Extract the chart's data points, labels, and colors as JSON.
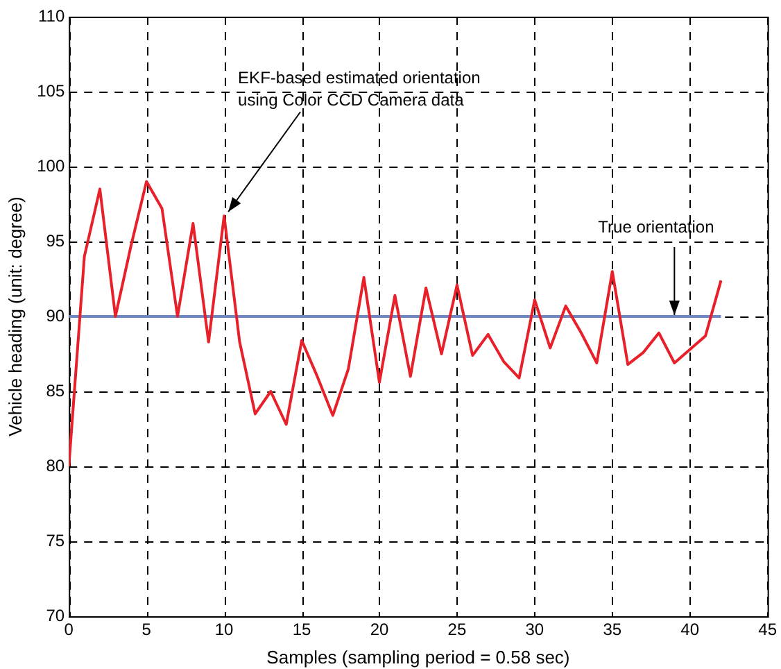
{
  "chart_data": {
    "type": "line",
    "xlabel": "Samples (sampling period = 0.58 sec)",
    "ylabel": "Vehicle heading (unit: degree)",
    "x": [
      0,
      1,
      2,
      3,
      4,
      5,
      6,
      7,
      8,
      9,
      10,
      11,
      12,
      13,
      14,
      15,
      16,
      17,
      18,
      19,
      20,
      21,
      22,
      23,
      24,
      25,
      26,
      27,
      28,
      29,
      30,
      31,
      32,
      33,
      34,
      35,
      36,
      37,
      38,
      39,
      40,
      41,
      42
    ],
    "series": [
      {
        "color": "#e8202a",
        "values": [
          80,
          94,
          98.5,
          90,
          94.7,
          99,
          97.2,
          90,
          96.2,
          88.3,
          96.7,
          88.3,
          83.5,
          85,
          82.8,
          88.4,
          86,
          83.4,
          86.5,
          92.6,
          85.6,
          91.4,
          86,
          91.9,
          87.5,
          92.1,
          87.4,
          88.8,
          87,
          85.9,
          91.1,
          87.9,
          90.7,
          88.9,
          86.9,
          93,
          86.8,
          87.6,
          88.9,
          86.9,
          87.8,
          88.7,
          92.4
        ]
      },
      {
        "color": "#6f86c4",
        "values": [
          90,
          90,
          90,
          90,
          90,
          90,
          90,
          90,
          90,
          90,
          90,
          90,
          90,
          90,
          90,
          90,
          90,
          90,
          90,
          90,
          90,
          90,
          90,
          90,
          90,
          90,
          90,
          90,
          90,
          90,
          90,
          90,
          90,
          90,
          90,
          90,
          90,
          90,
          90,
          90,
          90,
          90,
          90
        ]
      }
    ],
    "xlim": [
      0,
      45
    ],
    "xticks": [
      0,
      5,
      10,
      15,
      20,
      25,
      30,
      35,
      40,
      45
    ],
    "ylim": [
      70,
      110
    ],
    "yticks": [
      70,
      75,
      80,
      85,
      90,
      95,
      100,
      105,
      110
    ],
    "grid": true,
    "legend": false,
    "marker": "none",
    "line_style": "solid",
    "annotations": [
      {
        "text": "EKF-based estimated orientation\nusing Color CCD Camera data",
        "x": 10,
        "y": 96.7
      },
      {
        "text": "True orientation",
        "x": 39,
        "y": 90
      }
    ]
  }
}
